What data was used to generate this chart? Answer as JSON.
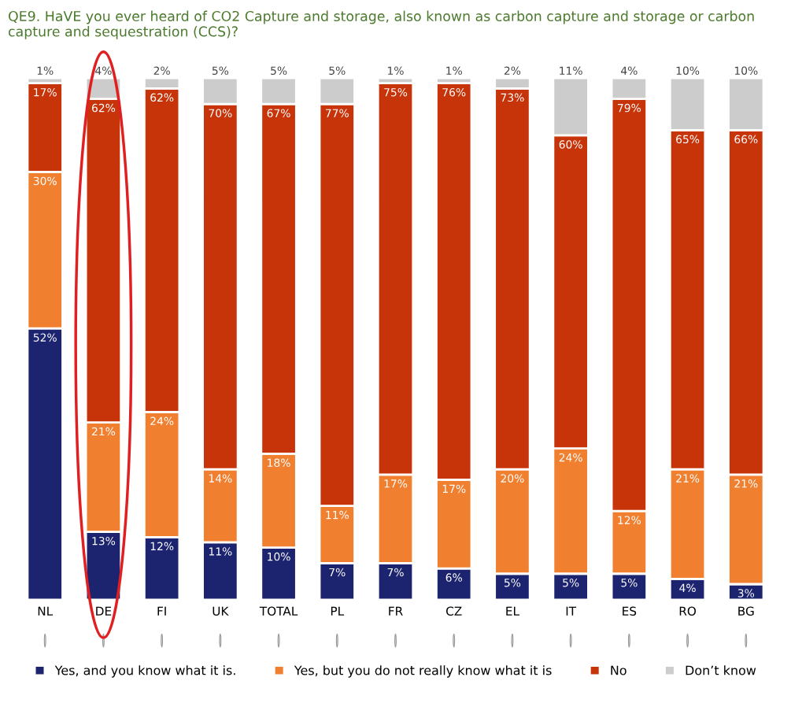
{
  "chart_data": {
    "type": "bar",
    "title": "QE9. HaVE you ever heard of CO2 Capture and storage, also known as carbon capture and storage or carbon capture and sequestration (CCS)?",
    "categories": [
      "NL",
      "DE",
      "FI",
      "UK",
      "TOTAL",
      "PL",
      "FR",
      "CZ",
      "EL",
      "IT",
      "ES",
      "RO",
      "BG"
    ],
    "stacked": true,
    "legend": "bottom",
    "grid": false,
    "series": [
      {
        "name": "Yes, and you know what it is.",
        "color": "#1c2470",
        "values": [
          52,
          13,
          12,
          11,
          10,
          7,
          7,
          6,
          5,
          5,
          5,
          4,
          3
        ],
        "value_labels": [
          "52%",
          "13%",
          "12%",
          "11%",
          "10%",
          "7%",
          "7%",
          "6%",
          "5%",
          "5%",
          "5%",
          "4%",
          "3%"
        ]
      },
      {
        "name": "Yes, but you do not really know what it is",
        "color": "#f08030",
        "values": [
          30,
          21,
          24,
          14,
          18,
          11,
          17,
          17,
          20,
          24,
          12,
          21,
          21
        ],
        "value_labels": [
          "30%",
          "21%",
          "24%",
          "14%",
          "18%",
          "11%",
          "17%",
          "17%",
          "20%",
          "24%",
          "12%",
          "21%",
          "21%"
        ]
      },
      {
        "name": "No",
        "color": "#c8340a",
        "values": [
          17,
          62,
          62,
          70,
          67,
          77,
          75,
          76,
          73,
          60,
          79,
          65,
          66
        ],
        "value_labels": [
          "17%",
          "62%",
          "62%",
          "70%",
          "67%",
          "77%",
          "75%",
          "76%",
          "73%",
          "60%",
          "79%",
          "65%",
          "66%"
        ]
      },
      {
        "name": "Don’t know",
        "color": "#cccccc",
        "values": [
          1,
          4,
          2,
          5,
          5,
          5,
          1,
          1,
          2,
          11,
          4,
          10,
          10
        ],
        "value_labels": [
          "1%",
          "4%",
          "2%",
          "5%",
          "5%",
          "5%",
          "1%",
          "1%",
          "2%",
          "11%",
          "4%",
          "10%",
          "10%"
        ]
      }
    ]
  }
}
